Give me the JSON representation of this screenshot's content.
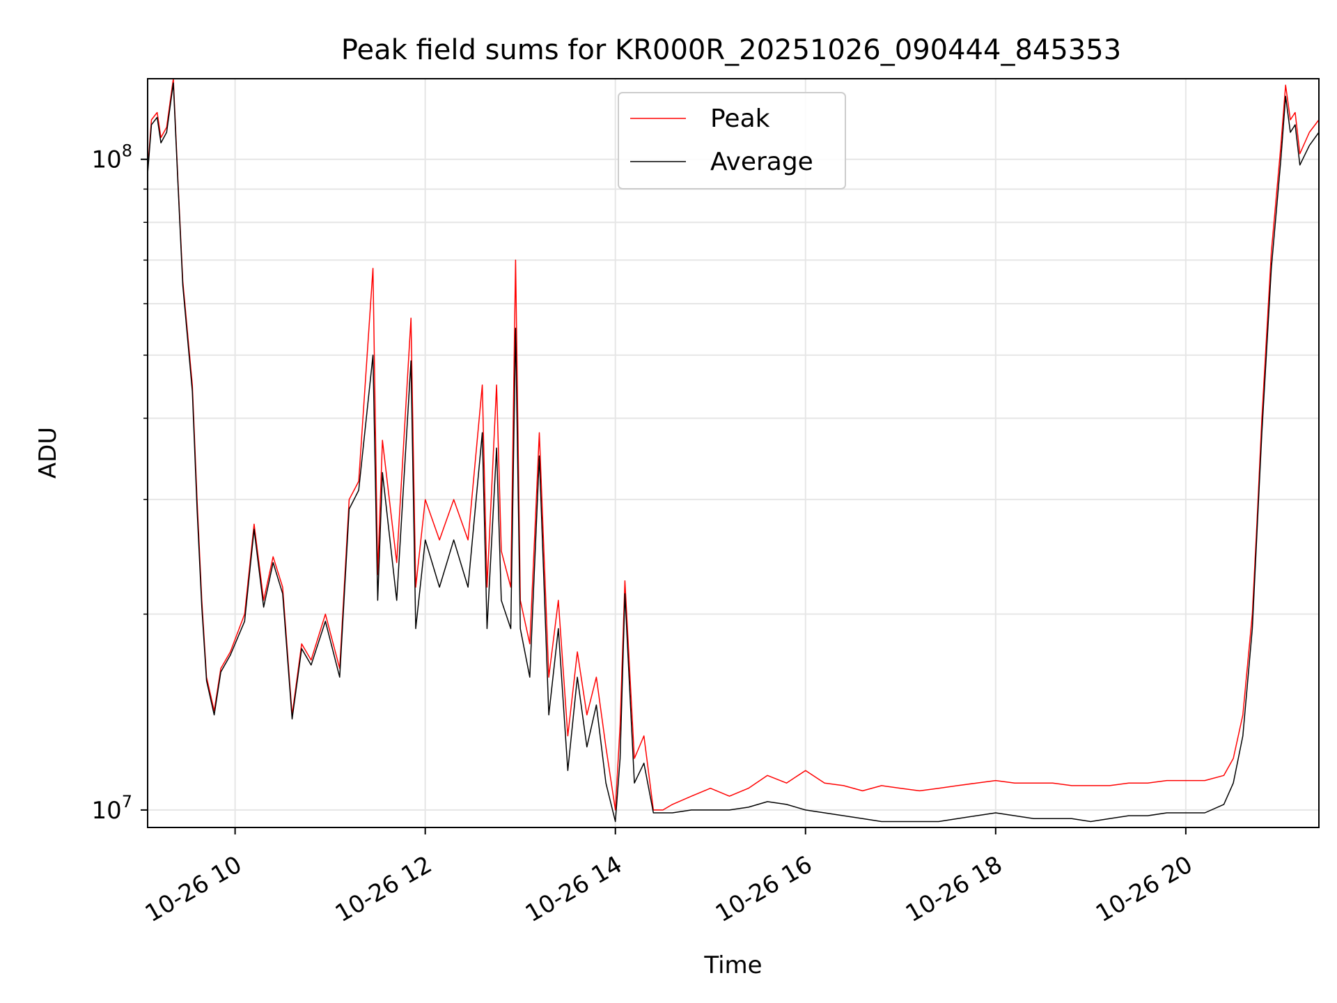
{
  "chart_data": {
    "type": "line",
    "title": "Peak field sums for KR000R_20251026_090444_845353",
    "xlabel": "Time",
    "ylabel": "ADU",
    "yscale": "log",
    "x_unit": "hours on 2025-10-26",
    "xlim": [
      9.08,
      21.4
    ],
    "ylim": [
      9400000.0,
      133000000.0
    ],
    "x_ticks": [
      10,
      12,
      14,
      16,
      18,
      20
    ],
    "x_tick_labels": [
      "10-26 10",
      "10-26 12",
      "10-26 14",
      "10-26 16",
      "10-26 18",
      "10-26 20"
    ],
    "y_major_ticks": [
      10000000,
      100000000
    ],
    "y_major_labels": [
      {
        "base": "10",
        "exp": "7"
      },
      {
        "base": "10",
        "exp": "8"
      }
    ],
    "y_minor_ticks": [
      20000000,
      30000000,
      40000000,
      50000000,
      60000000,
      70000000,
      80000000,
      90000000
    ],
    "grid": true,
    "legend_position": "top-center",
    "series": [
      {
        "name": "Peak",
        "color": "#ff0000",
        "x": [
          9.08,
          9.12,
          9.18,
          9.22,
          9.28,
          9.35,
          9.4,
          9.45,
          9.55,
          9.6,
          9.65,
          9.7,
          9.78,
          9.85,
          9.95,
          10.1,
          10.2,
          10.3,
          10.4,
          10.5,
          10.6,
          10.7,
          10.8,
          10.95,
          11.1,
          11.2,
          11.3,
          11.45,
          11.5,
          11.55,
          11.7,
          11.85,
          11.9,
          12.0,
          12.15,
          12.3,
          12.45,
          12.6,
          12.65,
          12.75,
          12.8,
          12.9,
          12.95,
          13.0,
          13.1,
          13.2,
          13.3,
          13.4,
          13.5,
          13.6,
          13.7,
          13.8,
          13.9,
          14.0,
          14.05,
          14.1,
          14.2,
          14.3,
          14.4,
          14.5,
          14.6,
          14.8,
          15.0,
          15.2,
          15.4,
          15.6,
          15.8,
          16.0,
          16.2,
          16.4,
          16.6,
          16.8,
          17.0,
          17.2,
          17.4,
          17.6,
          17.8,
          18.0,
          18.2,
          18.4,
          18.6,
          18.8,
          19.0,
          19.2,
          19.4,
          19.6,
          19.8,
          20.0,
          20.2,
          20.4,
          20.5,
          20.6,
          20.7,
          20.75,
          20.8,
          20.9,
          21.0,
          21.05,
          21.1,
          21.15,
          21.2,
          21.3,
          21.4
        ],
        "y": [
          96000000,
          115000000,
          118000000,
          108000000,
          112000000,
          133000000,
          92000000,
          65000000,
          45000000,
          30000000,
          21000000,
          16000000,
          14200000,
          16500000,
          17500000,
          20000000,
          27500000,
          21000000,
          24500000,
          22000000,
          14000000,
          18000000,
          17000000,
          20000000,
          16500000,
          30000000,
          32000000,
          68000000,
          23000000,
          37000000,
          24000000,
          57000000,
          22000000,
          30000000,
          26000000,
          30000000,
          26000000,
          45000000,
          22000000,
          45000000,
          25000000,
          22000000,
          70000000,
          21000000,
          18000000,
          38000000,
          16000000,
          21000000,
          13000000,
          17500000,
          14000000,
          16000000,
          12500000,
          10000000,
          13500000,
          22500000,
          12000000,
          13000000,
          10000000,
          10000000,
          10200000,
          10500000,
          10800000,
          10500000,
          10800000,
          11300000,
          11000000,
          11500000,
          11000000,
          10900000,
          10700000,
          10900000,
          10800000,
          10700000,
          10800000,
          10900000,
          11000000,
          11100000,
          11000000,
          11000000,
          11000000,
          10900000,
          10900000,
          10900000,
          11000000,
          11000000,
          11100000,
          11100000,
          11100000,
          11300000,
          12000000,
          14000000,
          20000000,
          28000000,
          40000000,
          72000000,
          105000000,
          130000000,
          115000000,
          118000000,
          102000000,
          110000000,
          115000000
        ]
      },
      {
        "name": "Average",
        "color": "#000000",
        "x": [
          9.08,
          9.12,
          9.18,
          9.22,
          9.28,
          9.35,
          9.4,
          9.45,
          9.55,
          9.6,
          9.65,
          9.7,
          9.78,
          9.85,
          9.95,
          10.1,
          10.2,
          10.3,
          10.4,
          10.5,
          10.6,
          10.7,
          10.8,
          10.95,
          11.1,
          11.2,
          11.3,
          11.45,
          11.5,
          11.55,
          11.7,
          11.85,
          11.9,
          12.0,
          12.15,
          12.3,
          12.45,
          12.6,
          12.65,
          12.75,
          12.8,
          12.9,
          12.95,
          13.0,
          13.1,
          13.2,
          13.3,
          13.4,
          13.5,
          13.6,
          13.7,
          13.8,
          13.9,
          14.0,
          14.05,
          14.1,
          14.2,
          14.3,
          14.4,
          14.5,
          14.6,
          14.8,
          15.0,
          15.2,
          15.4,
          15.6,
          15.8,
          16.0,
          16.2,
          16.4,
          16.6,
          16.8,
          17.0,
          17.2,
          17.4,
          17.6,
          17.8,
          18.0,
          18.2,
          18.4,
          18.6,
          18.8,
          19.0,
          19.2,
          19.4,
          19.6,
          19.8,
          20.0,
          20.2,
          20.4,
          20.5,
          20.6,
          20.7,
          20.75,
          20.8,
          20.9,
          21.0,
          21.05,
          21.1,
          21.15,
          21.2,
          21.3,
          21.4
        ],
        "y": [
          95000000,
          113000000,
          116000000,
          106000000,
          110000000,
          131000000,
          91000000,
          64000000,
          44000000,
          29000000,
          20500000,
          15800000,
          14000000,
          16300000,
          17300000,
          19500000,
          27000000,
          20500000,
          24000000,
          21500000,
          13800000,
          17700000,
          16700000,
          19500000,
          16000000,
          29000000,
          31000000,
          50000000,
          21000000,
          33000000,
          21000000,
          49000000,
          19000000,
          26000000,
          22000000,
          26000000,
          22000000,
          38000000,
          19000000,
          36000000,
          21000000,
          19000000,
          55000000,
          19000000,
          16000000,
          35000000,
          14000000,
          19000000,
          11500000,
          16000000,
          12500000,
          14500000,
          11000000,
          9600000,
          12000000,
          21500000,
          11000000,
          11800000,
          9900000,
          9900000,
          9900000,
          10000000,
          10000000,
          10000000,
          10100000,
          10300000,
          10200000,
          10000000,
          9900000,
          9800000,
          9700000,
          9600000,
          9600000,
          9600000,
          9600000,
          9700000,
          9800000,
          9900000,
          9800000,
          9700000,
          9700000,
          9700000,
          9600000,
          9700000,
          9800000,
          9800000,
          9900000,
          9900000,
          9900000,
          10200000,
          11000000,
          13000000,
          19000000,
          27000000,
          38000000,
          68000000,
          100000000,
          125000000,
          110000000,
          113000000,
          98000000,
          105000000,
          110000000
        ]
      }
    ]
  }
}
